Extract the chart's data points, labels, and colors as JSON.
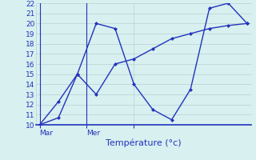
{
  "line1_x": [
    0,
    1,
    2,
    3,
    4,
    5,
    6,
    7,
    8,
    9,
    10,
    11
  ],
  "line1_y": [
    10.0,
    10.7,
    15.0,
    20.0,
    19.5,
    14.0,
    11.5,
    10.5,
    13.5,
    21.5,
    22.0,
    20.0
  ],
  "line2_x": [
    0,
    1,
    2,
    3,
    4,
    5,
    6,
    7,
    8,
    9,
    10,
    11
  ],
  "line2_y": [
    10.0,
    12.3,
    15.0,
    13.0,
    16.0,
    16.5,
    17.5,
    18.5,
    19.0,
    19.5,
    19.8,
    20.0
  ],
  "line_color": "#2233bb",
  "marker": "D",
  "marker_size": 2.5,
  "line_width": 1.0,
  "xlabel": "Température (°c)",
  "ylim": [
    10,
    22
  ],
  "yticks": [
    10,
    11,
    12,
    13,
    14,
    15,
    16,
    17,
    18,
    19,
    20,
    21,
    22
  ],
  "xtick_positions": [
    0,
    2.5,
    5
  ],
  "xtick_labels": [
    "Mar",
    "Mer",
    ""
  ],
  "vline_positions": [
    0,
    2.5
  ],
  "background_color": "#d8f0f0",
  "grid_color": "#b8d0d0",
  "axis_color": "#2233bb",
  "xlabel_fontsize": 8,
  "tick_fontsize": 6.5,
  "xlim": [
    -0.2,
    11.2
  ]
}
